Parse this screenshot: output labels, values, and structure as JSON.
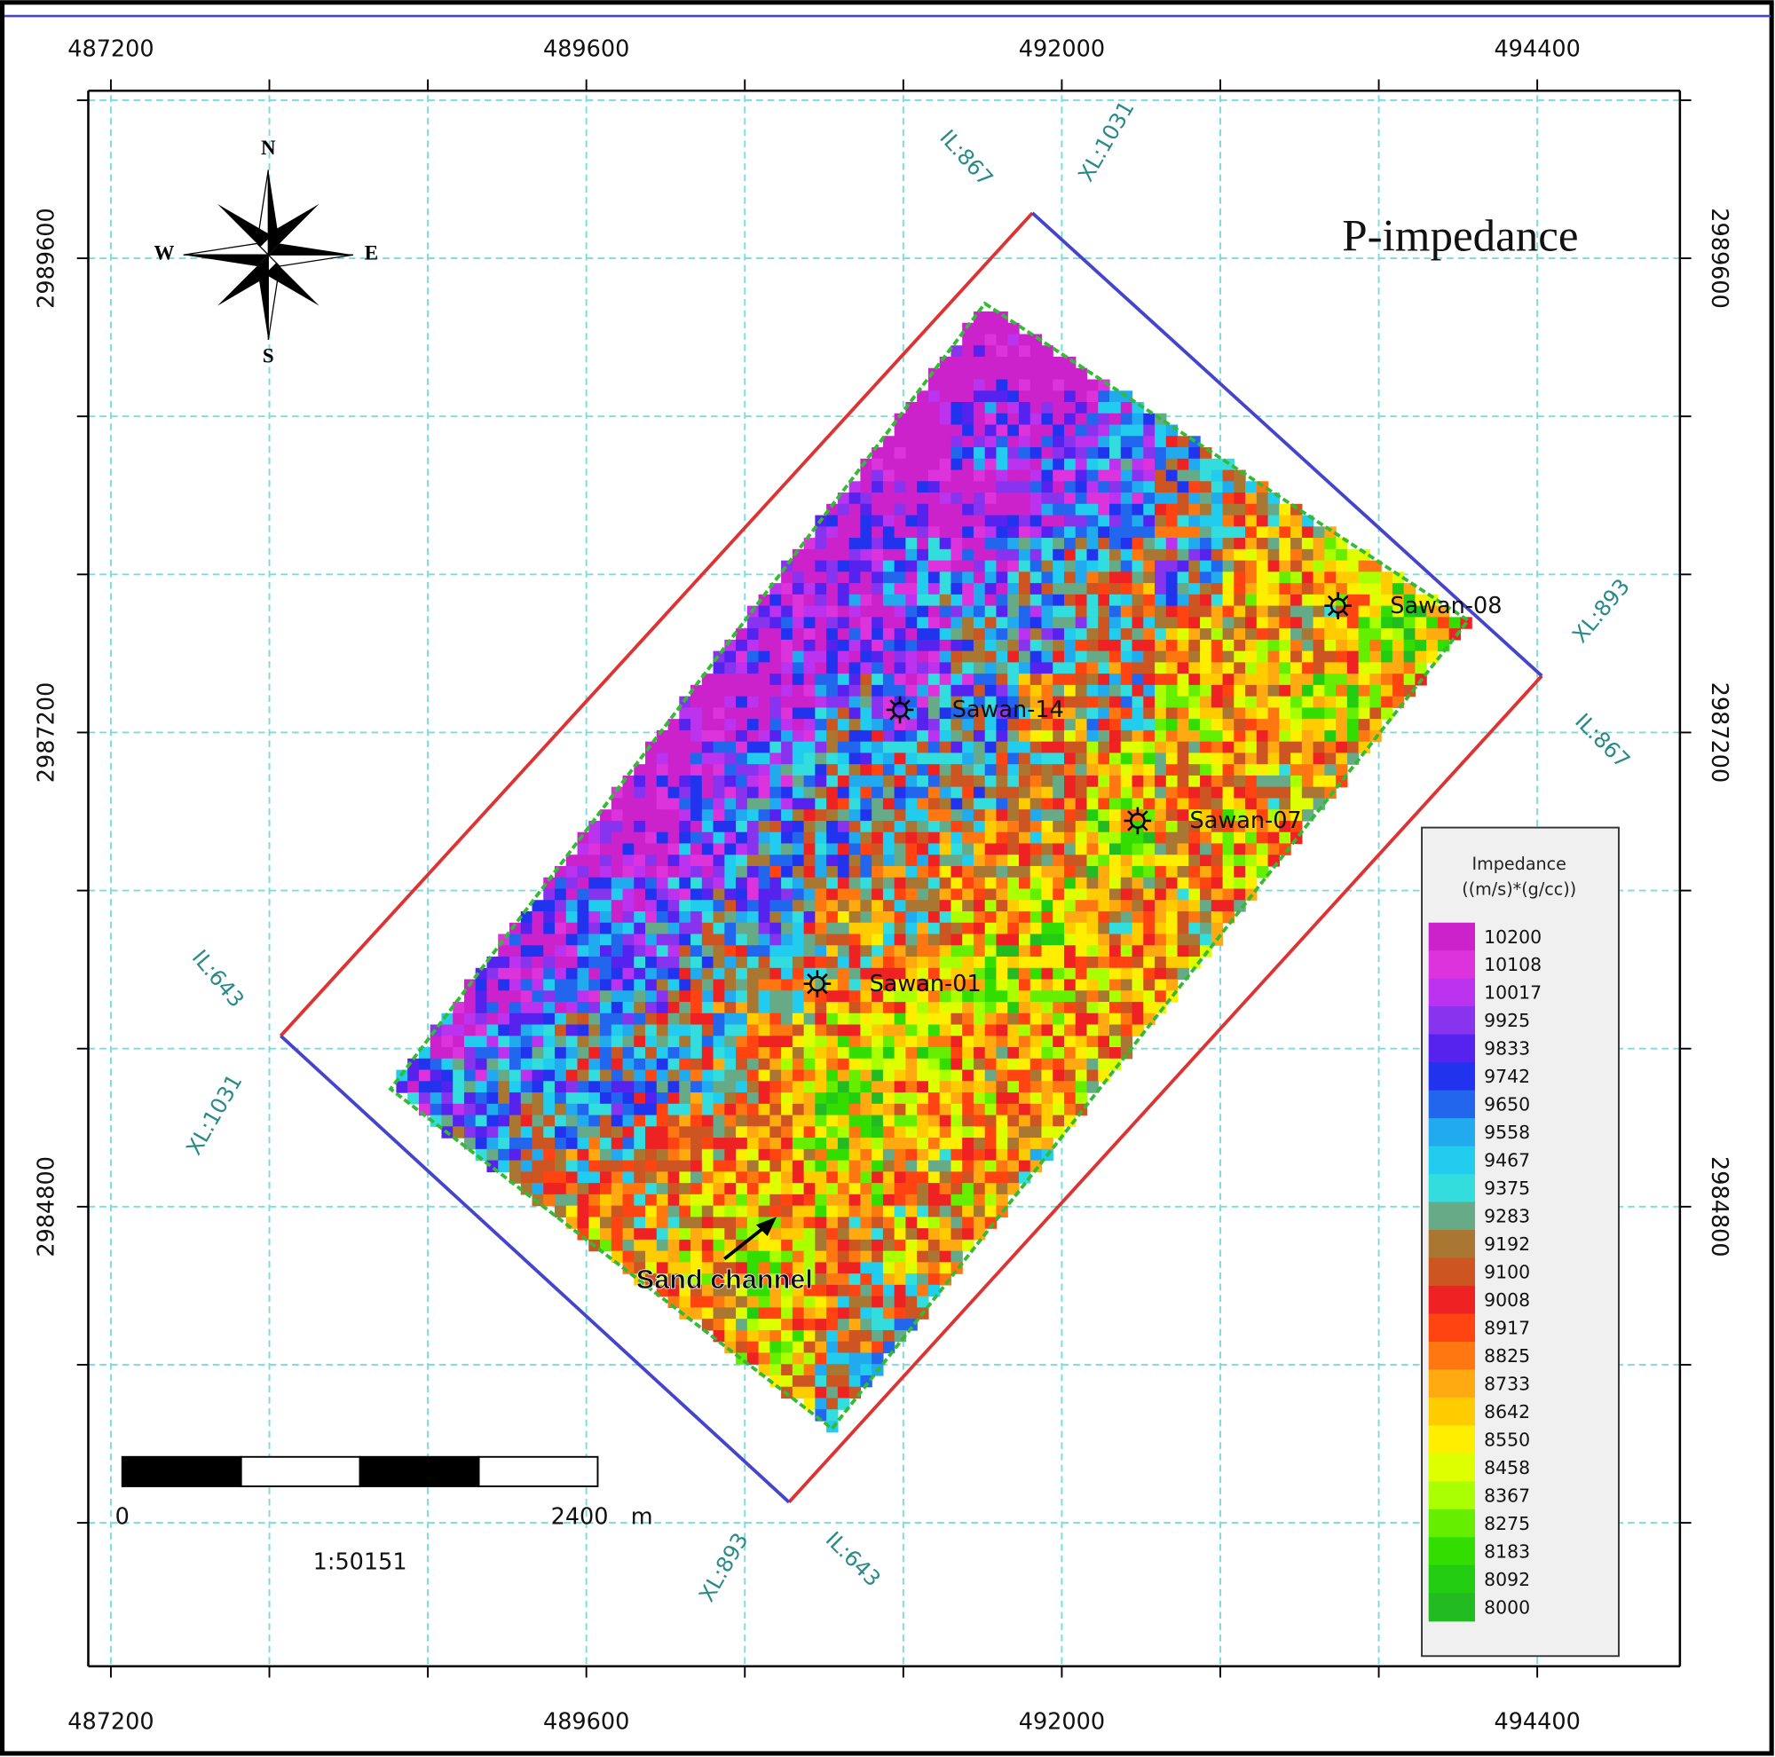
{
  "title": "P-impedance",
  "map": {
    "xlim": [
      487086,
      495120
    ],
    "ylim": [
      2982474,
      2990448
    ],
    "x_ticks": [
      487200,
      489600,
      492000,
      494400
    ],
    "y_ticks": [
      2989600,
      2987200,
      2984800
    ],
    "x_grid": [
      487200,
      488000,
      488800,
      489600,
      490400,
      491200,
      492000,
      492800,
      493600,
      494400
    ],
    "y_grid": [
      2990400,
      2989600,
      2988800,
      2988000,
      2987200,
      2986400,
      2985600,
      2984800,
      2984000,
      2983200
    ]
  },
  "compass": {
    "n": "N",
    "s": "S",
    "e": "E",
    "w": "W"
  },
  "survey_labels": [
    "IL:867",
    "XL:1031",
    "XL:893",
    "IL:867",
    "IL:643",
    "XL:1031",
    "XL:893",
    "IL:643"
  ],
  "wells": [
    "Sawan-08",
    "Sawan-14",
    "Sawan-07",
    "Sawan-01"
  ],
  "annotation": "Sand channel",
  "scale_bar": {
    "start": 0,
    "end": 2400,
    "unit": "m",
    "ratio": "1:50151"
  },
  "legend": {
    "title": "Impedance",
    "units": "((m/s)*(g/cc))",
    "entries": [
      {
        "value": 10200,
        "color": "#cc22cc"
      },
      {
        "value": 10108,
        "color": "#dd33dd"
      },
      {
        "value": 10017,
        "color": "#bb33ee"
      },
      {
        "value": 9925,
        "color": "#8833ee"
      },
      {
        "value": 9833,
        "color": "#5522ee"
      },
      {
        "value": 9742,
        "color": "#2233ee"
      },
      {
        "value": 9650,
        "color": "#2266ee"
      },
      {
        "value": 9558,
        "color": "#22aaee"
      },
      {
        "value": 9467,
        "color": "#22ccee"
      },
      {
        "value": 9375,
        "color": "#33dddd"
      },
      {
        "value": 9283,
        "color": "#66aa88"
      },
      {
        "value": 9192,
        "color": "#aa7733"
      },
      {
        "value": 9100,
        "color": "#cc5522"
      },
      {
        "value": 9008,
        "color": "#ee2222"
      },
      {
        "value": 8917,
        "color": "#ff4411"
      },
      {
        "value": 8825,
        "color": "#ff7711"
      },
      {
        "value": 8733,
        "color": "#ffaa11"
      },
      {
        "value": 8642,
        "color": "#ffcc00"
      },
      {
        "value": 8550,
        "color": "#ffee00"
      },
      {
        "value": 8458,
        "color": "#ddff00"
      },
      {
        "value": 8367,
        "color": "#aaff00"
      },
      {
        "value": 8275,
        "color": "#66ee00"
      },
      {
        "value": 8183,
        "color": "#33dd00"
      },
      {
        "value": 8092,
        "color": "#22cc11"
      },
      {
        "value": 8000,
        "color": "#22bb22"
      }
    ]
  }
}
